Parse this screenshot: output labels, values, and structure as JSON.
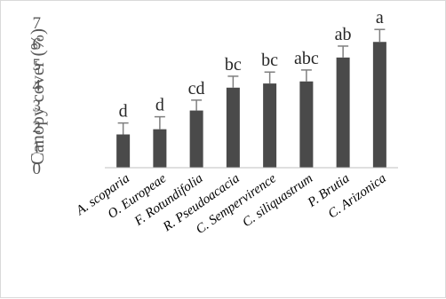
{
  "chart_data": {
    "type": "bar",
    "title": "",
    "xlabel": "",
    "ylabel": "Canopy cover (%)",
    "ylim": [
      0,
      7
    ],
    "yticks": [
      0,
      1,
      2,
      3,
      4,
      5,
      6,
      7
    ],
    "grid": false,
    "legend": "none",
    "bar_color": "#4a4a4a",
    "errorbar_color": "#7f7f7f",
    "categories": [
      "A. scoparia",
      "O. Europeae",
      "F. Rotundifolia",
      "R. Pseudoacacia",
      "C. Sempervirence",
      "C. siliquastrum",
      "P. Brutia",
      "C. Arizonica"
    ],
    "values": [
      1.6,
      1.85,
      2.75,
      3.85,
      4.05,
      4.15,
      5.3,
      6.05
    ],
    "errors": [
      0.55,
      0.6,
      0.5,
      0.55,
      0.55,
      0.55,
      0.55,
      0.6
    ],
    "significance": [
      "d",
      "d",
      "cd",
      "bc",
      "bc",
      "abc",
      "ab",
      "a"
    ]
  }
}
